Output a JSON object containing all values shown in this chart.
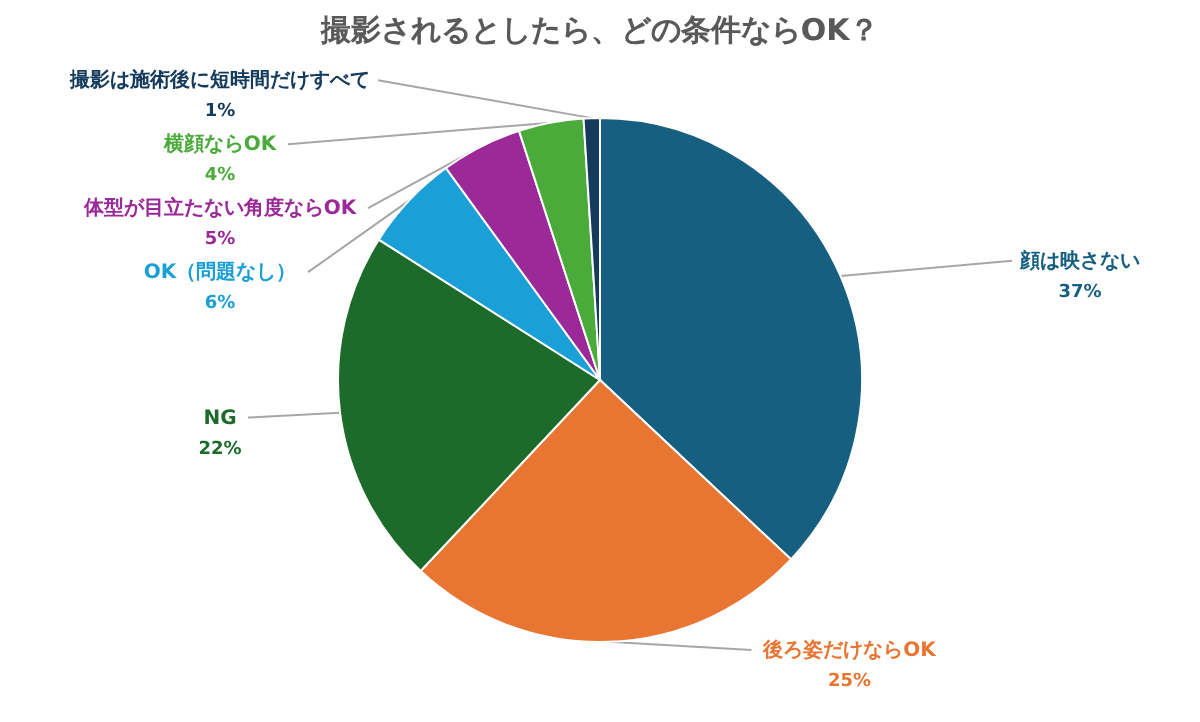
{
  "chart_data": {
    "type": "pie",
    "title": "撮影されるとしたら、どの条件ならOK？",
    "categories": [
      "顔は映さない",
      "後ろ姿だけならOK",
      "NG",
      "OK（問題なし）",
      "体型が目立たない角度ならOK",
      "横顔ならOK",
      "撮影は施術後に短時間だけすべて"
    ],
    "values": [
      37,
      25,
      22,
      6,
      5,
      4,
      1
    ],
    "colors": [
      "#175f80",
      "#e87532",
      "#1d6b2a",
      "#1a9fd6",
      "#9b2a98",
      "#4aaa3a",
      "#143a5c"
    ],
    "value_labels": [
      "37%",
      "25%",
      "22%",
      "6%",
      "5%",
      "4%",
      "1%"
    ]
  }
}
